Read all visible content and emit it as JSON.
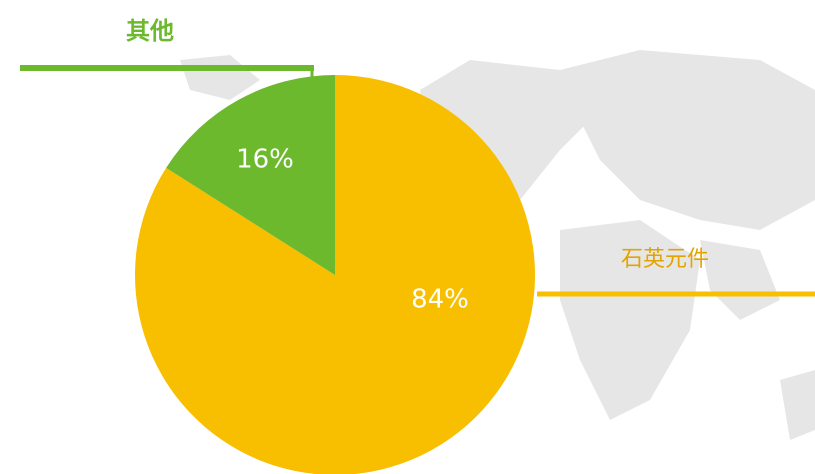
{
  "chart_data": {
    "type": "pie",
    "categories": [
      "石英元件",
      "其他"
    ],
    "values": [
      84,
      16
    ],
    "value_labels": [
      "84%",
      "16%"
    ],
    "colors": [
      "#f8be00",
      "#6db92e"
    ],
    "label_colors": [
      "#e3a400",
      "#6db92e"
    ]
  }
}
